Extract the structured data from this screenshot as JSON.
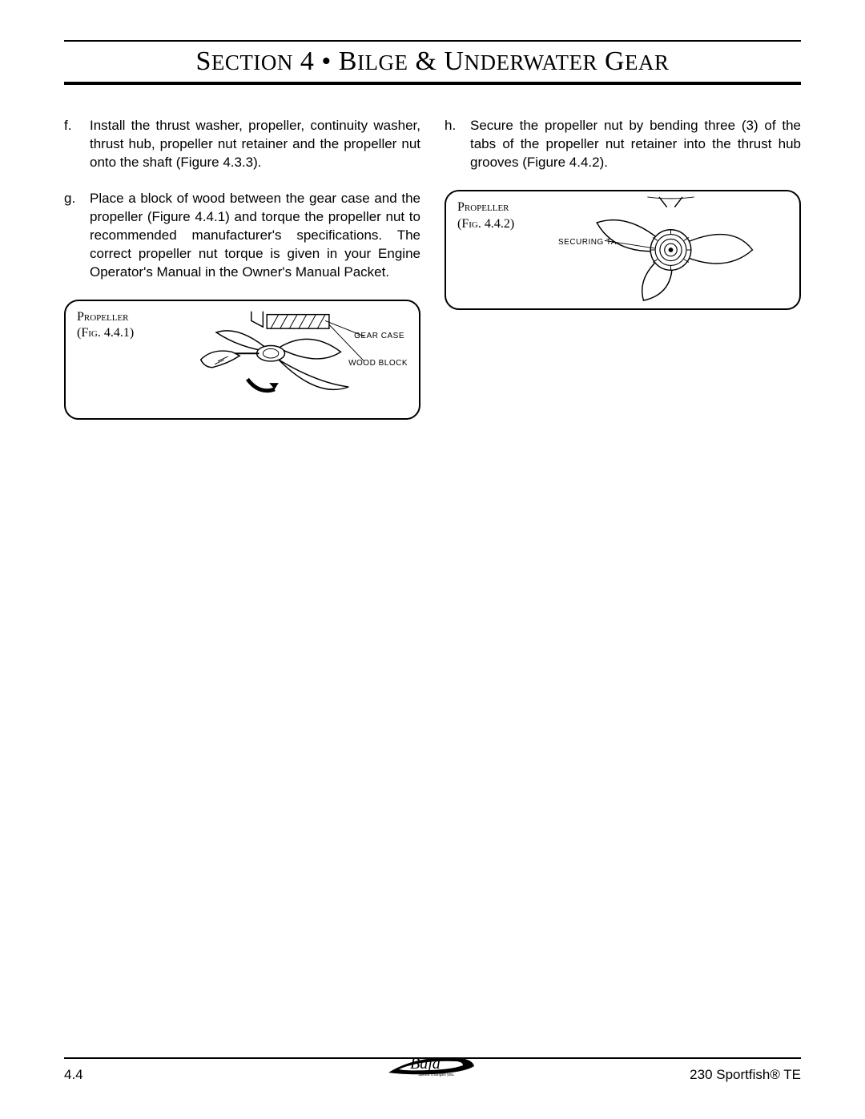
{
  "header": {
    "title_html": "S<span style='font-size:27px'>ECTION</span> 4 • B<span style='font-size:27px'>ILGE</span> & U<span style='font-size:27px'>NDERWATER</span> G<span style='font-size:27px'>EAR</span>"
  },
  "left_col": {
    "items": [
      {
        "letter": "f.",
        "text": "Install the thrust washer, propeller, continuity washer, thrust hub, propeller nut retainer and the propeller nut onto the shaft (Figure 4.3.3)."
      },
      {
        "letter": "g.",
        "text": "Place a block of wood between the gear case and the propeller (Figure 4.4.1) and torque the propeller nut to recommended manufacturer's specifications. The correct propeller nut torque is given in your Engine Operator's Manual in the Owner's Manual Packet."
      }
    ],
    "figure": {
      "caption_name": "Propeller",
      "caption_fig": "(Fig. 4.4.1)",
      "label1": "GEAR CASE",
      "label2": "WOOD BLOCK"
    }
  },
  "right_col": {
    "items": [
      {
        "letter": "h.",
        "text": "Secure the propeller nut by bending three (3) of the tabs of the propeller nut retainer into the thrust hub grooves (Figure 4.4.2)."
      }
    ],
    "figure": {
      "caption_name": "Propeller",
      "caption_fig": "(Fig. 4.4.2)",
      "label1": "SECURING  TABS"
    }
  },
  "footer": {
    "page_num": "4.4",
    "doc_title": "230 Sportfish® TE",
    "logo_tagline": "Speed changes you."
  },
  "colors": {
    "text": "#000000",
    "bg": "#ffffff",
    "rule": "#000000"
  }
}
